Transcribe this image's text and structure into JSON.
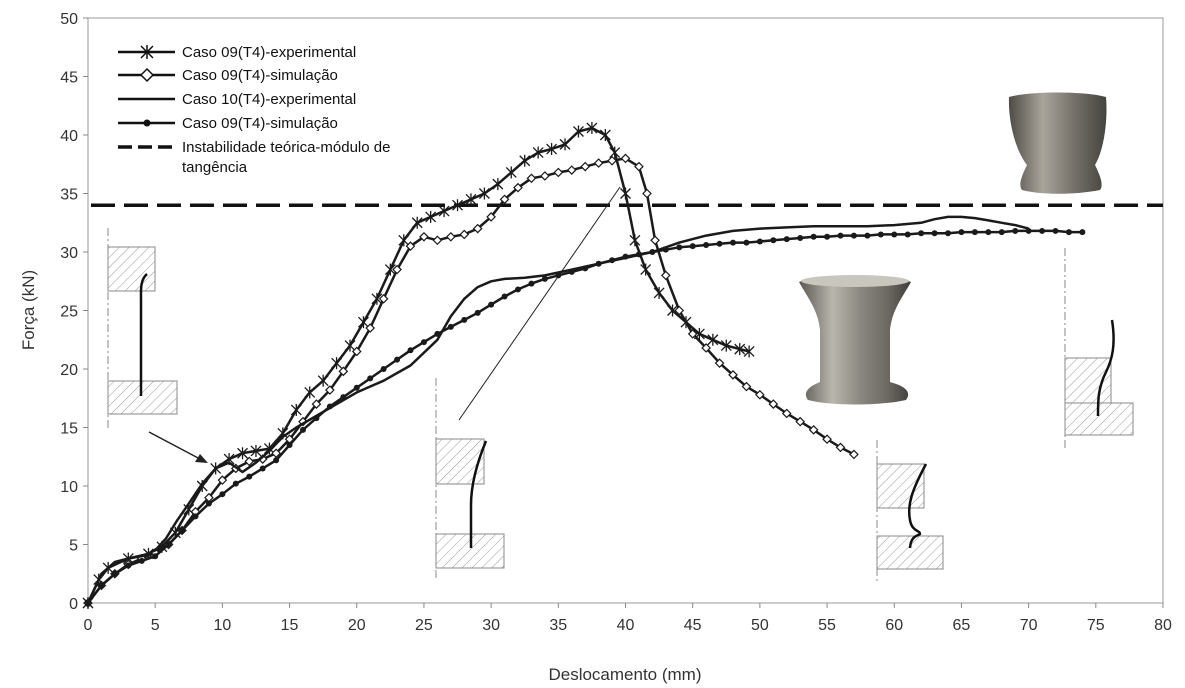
{
  "chart_data": {
    "type": "line",
    "title": "",
    "xlabel": "Deslocamento (mm)",
    "ylabel": "Força (kN)",
    "xlim": [
      0,
      80
    ],
    "ylim": [
      0,
      50
    ],
    "xticks": [
      0,
      5,
      10,
      15,
      20,
      25,
      30,
      35,
      40,
      45,
      50,
      55,
      60,
      65,
      70,
      75,
      80
    ],
    "yticks": [
      0,
      5,
      10,
      15,
      20,
      25,
      30,
      35,
      40,
      45,
      50
    ],
    "grid": false,
    "legend_position": "top-left",
    "series": [
      {
        "name": "Caso 09(T4)-experimental",
        "marker": "asterisk",
        "color": "#1a1a1a",
        "points": [
          [
            0,
            0
          ],
          [
            0.8,
            2
          ],
          [
            1.5,
            3
          ],
          [
            3,
            3.8
          ],
          [
            4.5,
            4.2
          ],
          [
            5.5,
            4.8
          ],
          [
            6.5,
            6
          ],
          [
            7.5,
            8
          ],
          [
            8.5,
            10
          ],
          [
            9.5,
            11.5
          ],
          [
            10.5,
            12.3
          ],
          [
            11.5,
            12.8
          ],
          [
            12.5,
            13
          ],
          [
            13.5,
            13.2
          ],
          [
            14.5,
            14.5
          ],
          [
            15.5,
            16.5
          ],
          [
            16.5,
            18
          ],
          [
            17.5,
            19
          ],
          [
            18.5,
            20.5
          ],
          [
            19.5,
            22
          ],
          [
            20.5,
            24
          ],
          [
            21.5,
            26
          ],
          [
            22.5,
            28.5
          ],
          [
            23.5,
            31
          ],
          [
            24.5,
            32.5
          ],
          [
            25.5,
            33
          ],
          [
            26.5,
            33.5
          ],
          [
            27.5,
            34
          ],
          [
            28.5,
            34.5
          ],
          [
            29.5,
            35
          ],
          [
            30.5,
            35.8
          ],
          [
            31.5,
            36.8
          ],
          [
            32.5,
            37.8
          ],
          [
            33.5,
            38.5
          ],
          [
            34.5,
            38.8
          ],
          [
            35.5,
            39.2
          ],
          [
            36.5,
            40.3
          ],
          [
            37.5,
            40.6
          ],
          [
            38.5,
            40
          ],
          [
            39.2,
            38.5
          ],
          [
            40,
            35
          ],
          [
            40.7,
            31
          ],
          [
            41.5,
            28.5
          ],
          [
            42.5,
            26.5
          ],
          [
            43.5,
            25
          ],
          [
            44.5,
            24
          ],
          [
            45.5,
            23
          ],
          [
            46.5,
            22.5
          ],
          [
            47.5,
            22
          ],
          [
            48.5,
            21.7
          ],
          [
            49.2,
            21.5
          ]
        ]
      },
      {
        "name": "Caso 09(T4)-simulação",
        "marker": "diamond",
        "color": "#1a1a1a",
        "points": [
          [
            0,
            0
          ],
          [
            1,
            1.5
          ],
          [
            2,
            2.5
          ],
          [
            3,
            3.3
          ],
          [
            4,
            3.8
          ],
          [
            5,
            4.3
          ],
          [
            6,
            5
          ],
          [
            7,
            6.2
          ],
          [
            8,
            7.8
          ],
          [
            9,
            9
          ],
          [
            10,
            10.5
          ],
          [
            11,
            11.5
          ],
          [
            12,
            12.1
          ],
          [
            13,
            12.3
          ],
          [
            14,
            12.8
          ],
          [
            15,
            14
          ],
          [
            16,
            15.5
          ],
          [
            17,
            17
          ],
          [
            18,
            18.2
          ],
          [
            19,
            19.8
          ],
          [
            20,
            21.5
          ],
          [
            21,
            23.5
          ],
          [
            22,
            26
          ],
          [
            23,
            28.5
          ],
          [
            24,
            30.5
          ],
          [
            25,
            31.3
          ],
          [
            26,
            31
          ],
          [
            27,
            31.3
          ],
          [
            28,
            31.5
          ],
          [
            29,
            32
          ],
          [
            30,
            33
          ],
          [
            31,
            34.5
          ],
          [
            32,
            35.5
          ],
          [
            33,
            36.3
          ],
          [
            34,
            36.5
          ],
          [
            35,
            36.8
          ],
          [
            36,
            37
          ],
          [
            37,
            37.3
          ],
          [
            38,
            37.6
          ],
          [
            39,
            37.8
          ],
          [
            40,
            38
          ],
          [
            41,
            37.3
          ],
          [
            41.6,
            35
          ],
          [
            42.2,
            31
          ],
          [
            43,
            28
          ],
          [
            44,
            25
          ],
          [
            45,
            23
          ],
          [
            46,
            21.8
          ],
          [
            47,
            20.5
          ],
          [
            48,
            19.5
          ],
          [
            49,
            18.5
          ],
          [
            50,
            17.8
          ],
          [
            51,
            17
          ],
          [
            52,
            16.2
          ],
          [
            53,
            15.5
          ],
          [
            54,
            14.8
          ],
          [
            55,
            14
          ],
          [
            56,
            13.3
          ],
          [
            57,
            12.7
          ]
        ]
      },
      {
        "name": "Caso 10(T4)-experimental",
        "marker": "none",
        "color": "#1a1a1a",
        "points": [
          [
            0,
            0
          ],
          [
            1,
            2.5
          ],
          [
            2,
            3.5
          ],
          [
            3,
            3.8
          ],
          [
            4,
            4
          ],
          [
            5,
            4.5
          ],
          [
            5.8,
            5.5
          ],
          [
            6.6,
            7
          ],
          [
            7.5,
            8.5
          ],
          [
            8.5,
            10.2
          ],
          [
            9.5,
            11.5
          ],
          [
            10.5,
            12
          ],
          [
            11.5,
            11.2
          ],
          [
            12.5,
            12
          ],
          [
            13.5,
            13
          ],
          [
            14.5,
            14.2
          ],
          [
            15.5,
            15
          ],
          [
            17,
            16
          ],
          [
            18.5,
            17
          ],
          [
            20,
            18
          ],
          [
            22,
            19
          ],
          [
            24,
            20.3
          ],
          [
            26,
            22.5
          ],
          [
            27,
            24.5
          ],
          [
            28,
            26
          ],
          [
            29,
            27
          ],
          [
            30,
            27.5
          ],
          [
            31,
            27.7
          ],
          [
            32.5,
            27.8
          ],
          [
            34,
            28
          ],
          [
            36,
            28.5
          ],
          [
            38,
            29
          ],
          [
            40,
            29.5
          ],
          [
            42,
            30
          ],
          [
            44,
            30.8
          ],
          [
            46,
            31.4
          ],
          [
            48,
            31.8
          ],
          [
            50,
            32
          ],
          [
            52,
            32.1
          ],
          [
            54,
            32.2
          ],
          [
            56,
            32.2
          ],
          [
            58,
            32.2
          ],
          [
            60,
            32.3
          ],
          [
            62,
            32.5
          ],
          [
            63,
            32.8
          ],
          [
            64,
            33
          ],
          [
            65,
            33
          ],
          [
            66,
            32.9
          ],
          [
            67,
            32.7
          ],
          [
            68,
            32.5
          ],
          [
            69,
            32.3
          ],
          [
            70,
            32
          ]
        ]
      },
      {
        "name": "Caso 09(T4)-simulação",
        "marker": "dot",
        "color": "#1a1a1a",
        "points": [
          [
            0,
            0
          ],
          [
            1,
            1.5
          ],
          [
            2,
            2.5
          ],
          [
            3,
            3.2
          ],
          [
            4,
            3.6
          ],
          [
            5,
            4
          ],
          [
            6,
            5
          ],
          [
            7,
            6.2
          ],
          [
            8,
            7.4
          ],
          [
            9,
            8.5
          ],
          [
            10,
            9.3
          ],
          [
            11,
            10.2
          ],
          [
            12,
            10.8
          ],
          [
            13,
            11.5
          ],
          [
            14,
            12.2
          ],
          [
            15,
            13.5
          ],
          [
            16,
            14.8
          ],
          [
            17,
            15.8
          ],
          [
            18,
            16.8
          ],
          [
            19,
            17.6
          ],
          [
            20,
            18.4
          ],
          [
            21,
            19.2
          ],
          [
            22,
            20
          ],
          [
            23,
            20.8
          ],
          [
            24,
            21.6
          ],
          [
            25,
            22.3
          ],
          [
            26,
            23
          ],
          [
            27,
            23.6
          ],
          [
            28,
            24.2
          ],
          [
            29,
            24.8
          ],
          [
            30,
            25.5
          ],
          [
            31,
            26.2
          ],
          [
            32,
            26.8
          ],
          [
            33,
            27.3
          ],
          [
            34,
            27.7
          ],
          [
            35,
            28
          ],
          [
            36,
            28.3
          ],
          [
            37,
            28.6
          ],
          [
            38,
            29
          ],
          [
            39,
            29.3
          ],
          [
            40,
            29.6
          ],
          [
            41,
            29.8
          ],
          [
            42,
            30
          ],
          [
            43,
            30.2
          ],
          [
            44,
            30.4
          ],
          [
            45,
            30.5
          ],
          [
            46,
            30.6
          ],
          [
            47,
            30.7
          ],
          [
            48,
            30.8
          ],
          [
            49,
            30.8
          ],
          [
            50,
            30.9
          ],
          [
            51,
            31
          ],
          [
            52,
            31.1
          ],
          [
            53,
            31.2
          ],
          [
            54,
            31.3
          ],
          [
            55,
            31.3
          ],
          [
            56,
            31.4
          ],
          [
            57,
            31.4
          ],
          [
            58,
            31.4
          ],
          [
            59,
            31.5
          ],
          [
            60,
            31.5
          ],
          [
            61,
            31.5
          ],
          [
            62,
            31.6
          ],
          [
            63,
            31.6
          ],
          [
            64,
            31.6
          ],
          [
            65,
            31.7
          ],
          [
            66,
            31.7
          ],
          [
            67,
            31.7
          ],
          [
            68,
            31.7
          ],
          [
            69,
            31.8
          ],
          [
            70,
            31.8
          ],
          [
            71,
            31.8
          ],
          [
            72,
            31.8
          ],
          [
            73,
            31.7
          ],
          [
            74,
            31.7
          ]
        ]
      }
    ],
    "reference_line": {
      "name": "Instabilidade teórica-módulo de tangência",
      "y": 34,
      "style": "dashed",
      "color": "#111111"
    },
    "legend": [
      {
        "label": "Caso 09(T4)-experimental",
        "marker": "asterisk"
      },
      {
        "label": "Caso 09(T4)-simulação",
        "marker": "diamond"
      },
      {
        "label": "Caso 10(T4)-experimental",
        "marker": "none"
      },
      {
        "label": "Caso 09(T4)-simulação",
        "marker": "dot"
      },
      {
        "label_lines": [
          "Instabilidade teórica-módulo de",
          "tangência"
        ],
        "marker": "dashed"
      }
    ]
  }
}
